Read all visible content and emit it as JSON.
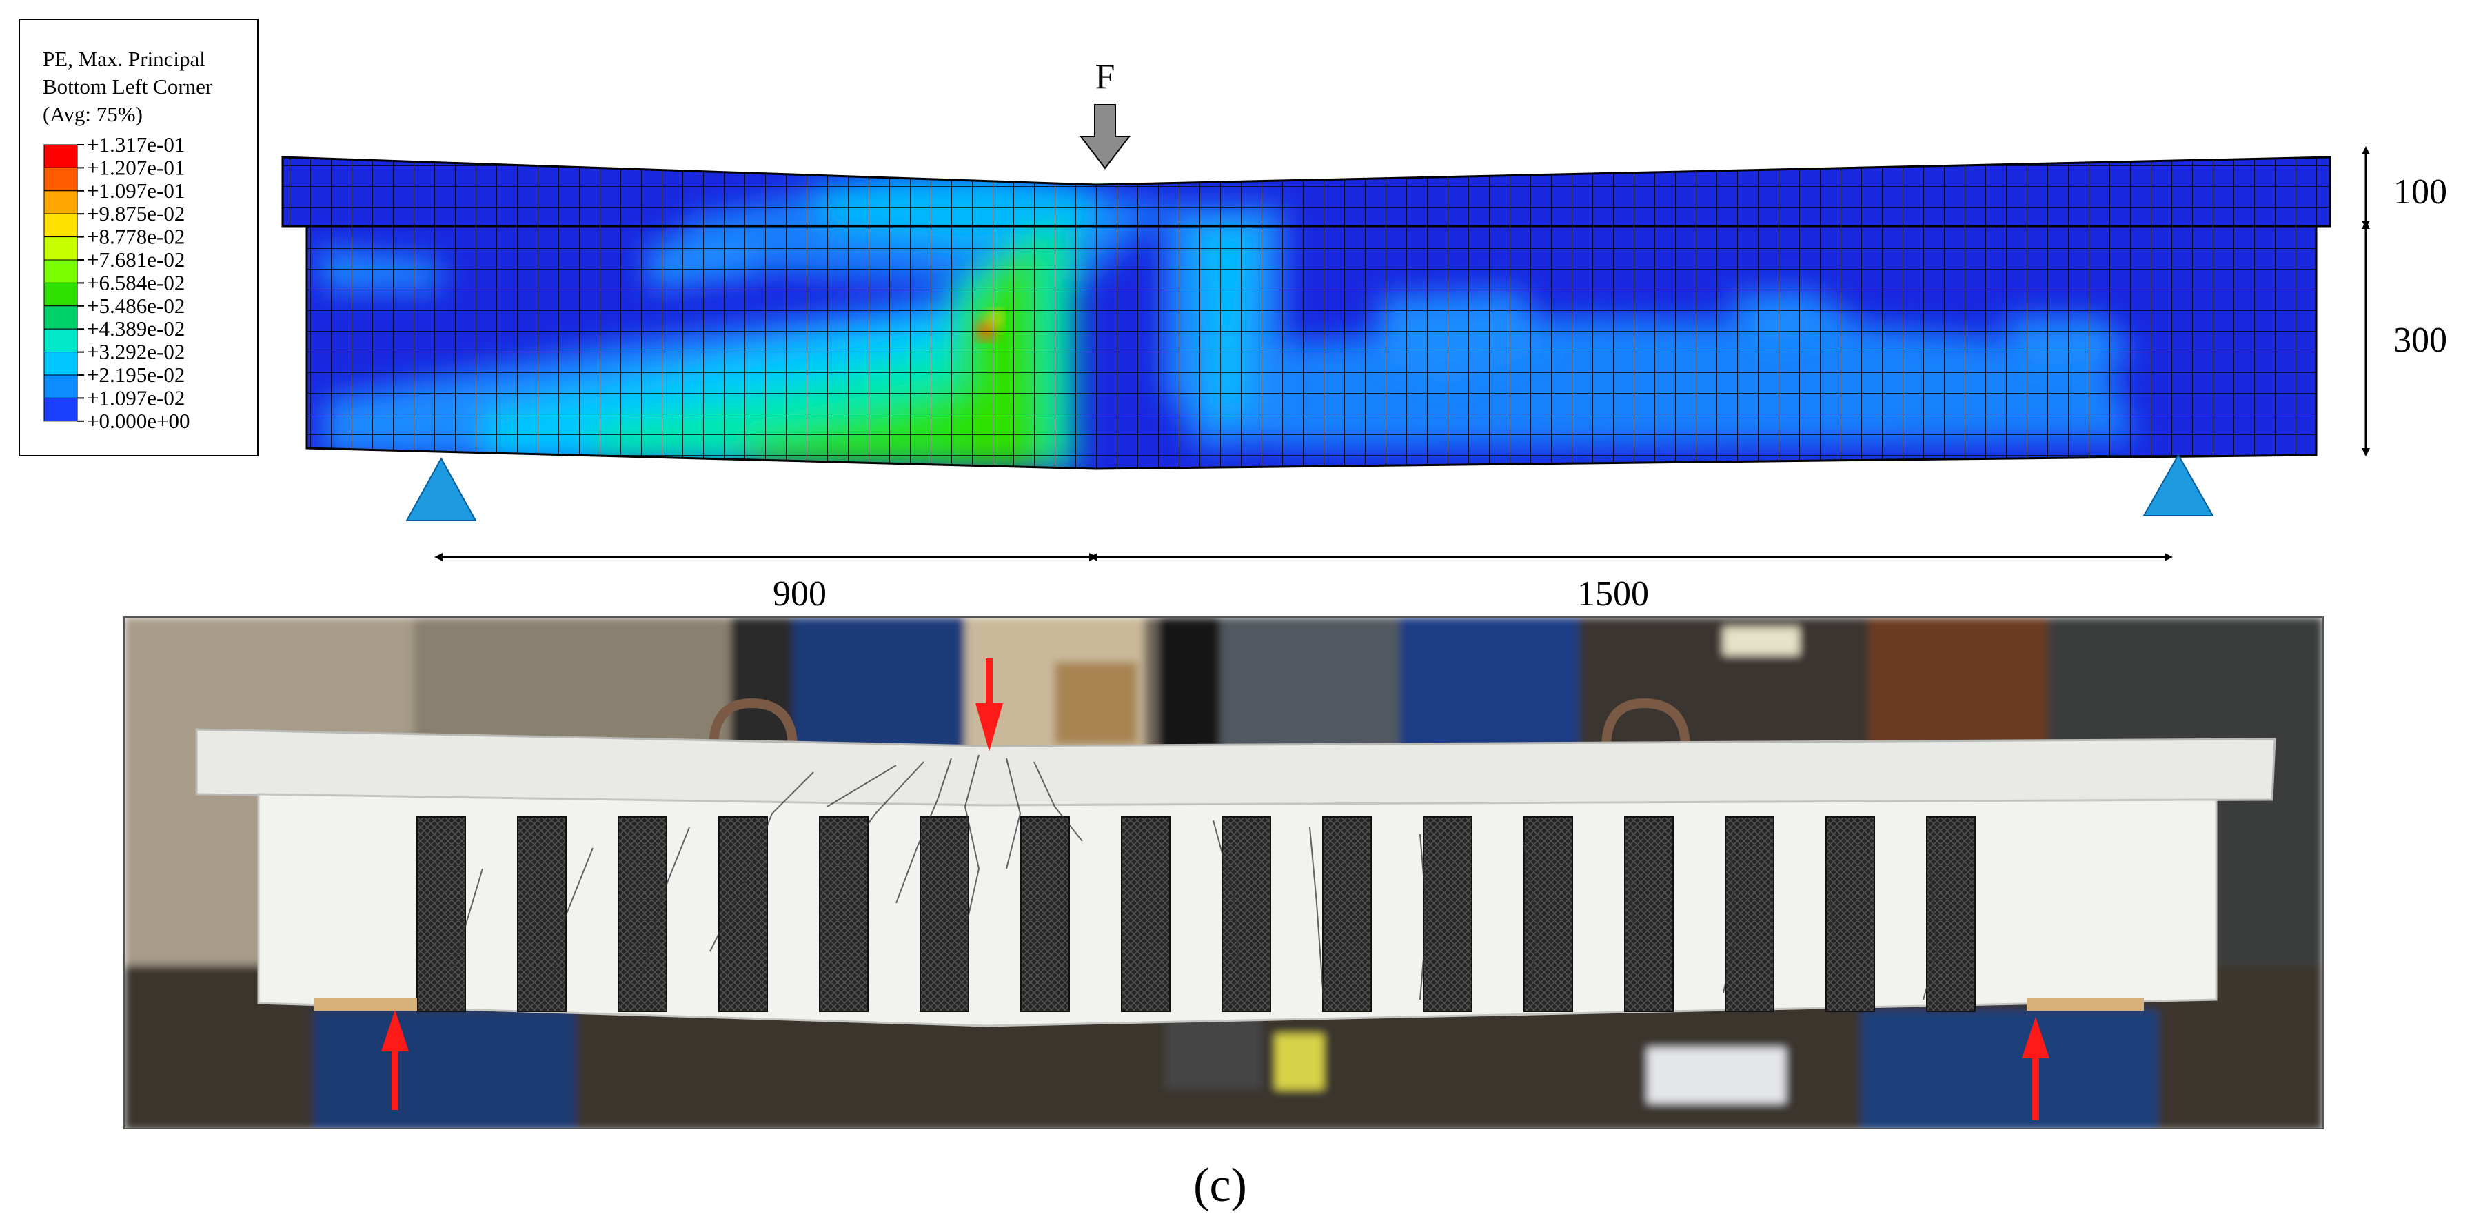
{
  "legend": {
    "title_lines": [
      "PE, Max. Principal",
      "Bottom Left Corner",
      "(Avg: 75%)"
    ],
    "values": [
      "+1.317e-01",
      "+1.207e-01",
      "+1.097e-01",
      "+9.875e-02",
      "+8.778e-02",
      "+7.681e-02",
      "+6.584e-02",
      "+5.486e-02",
      "+4.389e-02",
      "+3.292e-02",
      "+2.195e-02",
      "+1.097e-02",
      "+0.000e+00"
    ],
    "band_colors": [
      "#ff0000",
      "#ff5a00",
      "#ffa600",
      "#ffe100",
      "#c6ff00",
      "#7bff00",
      "#2ee000",
      "#00d16a",
      "#00e8c8",
      "#00c6ff",
      "#0b8dff",
      "#1a3fff"
    ]
  },
  "diagram": {
    "load_label": "F",
    "flange_height": "100",
    "web_height": "300",
    "shear_span": "900",
    "remaining_span": "1500"
  },
  "colors": {
    "mesh_base": "#1a28e0",
    "support": "#1e9be0",
    "load_arrow": "#8c8c8c",
    "crack_arrow": "#ff1a1a",
    "cfrp_strip": "#2b2b2b"
  },
  "caption": "(c)"
}
